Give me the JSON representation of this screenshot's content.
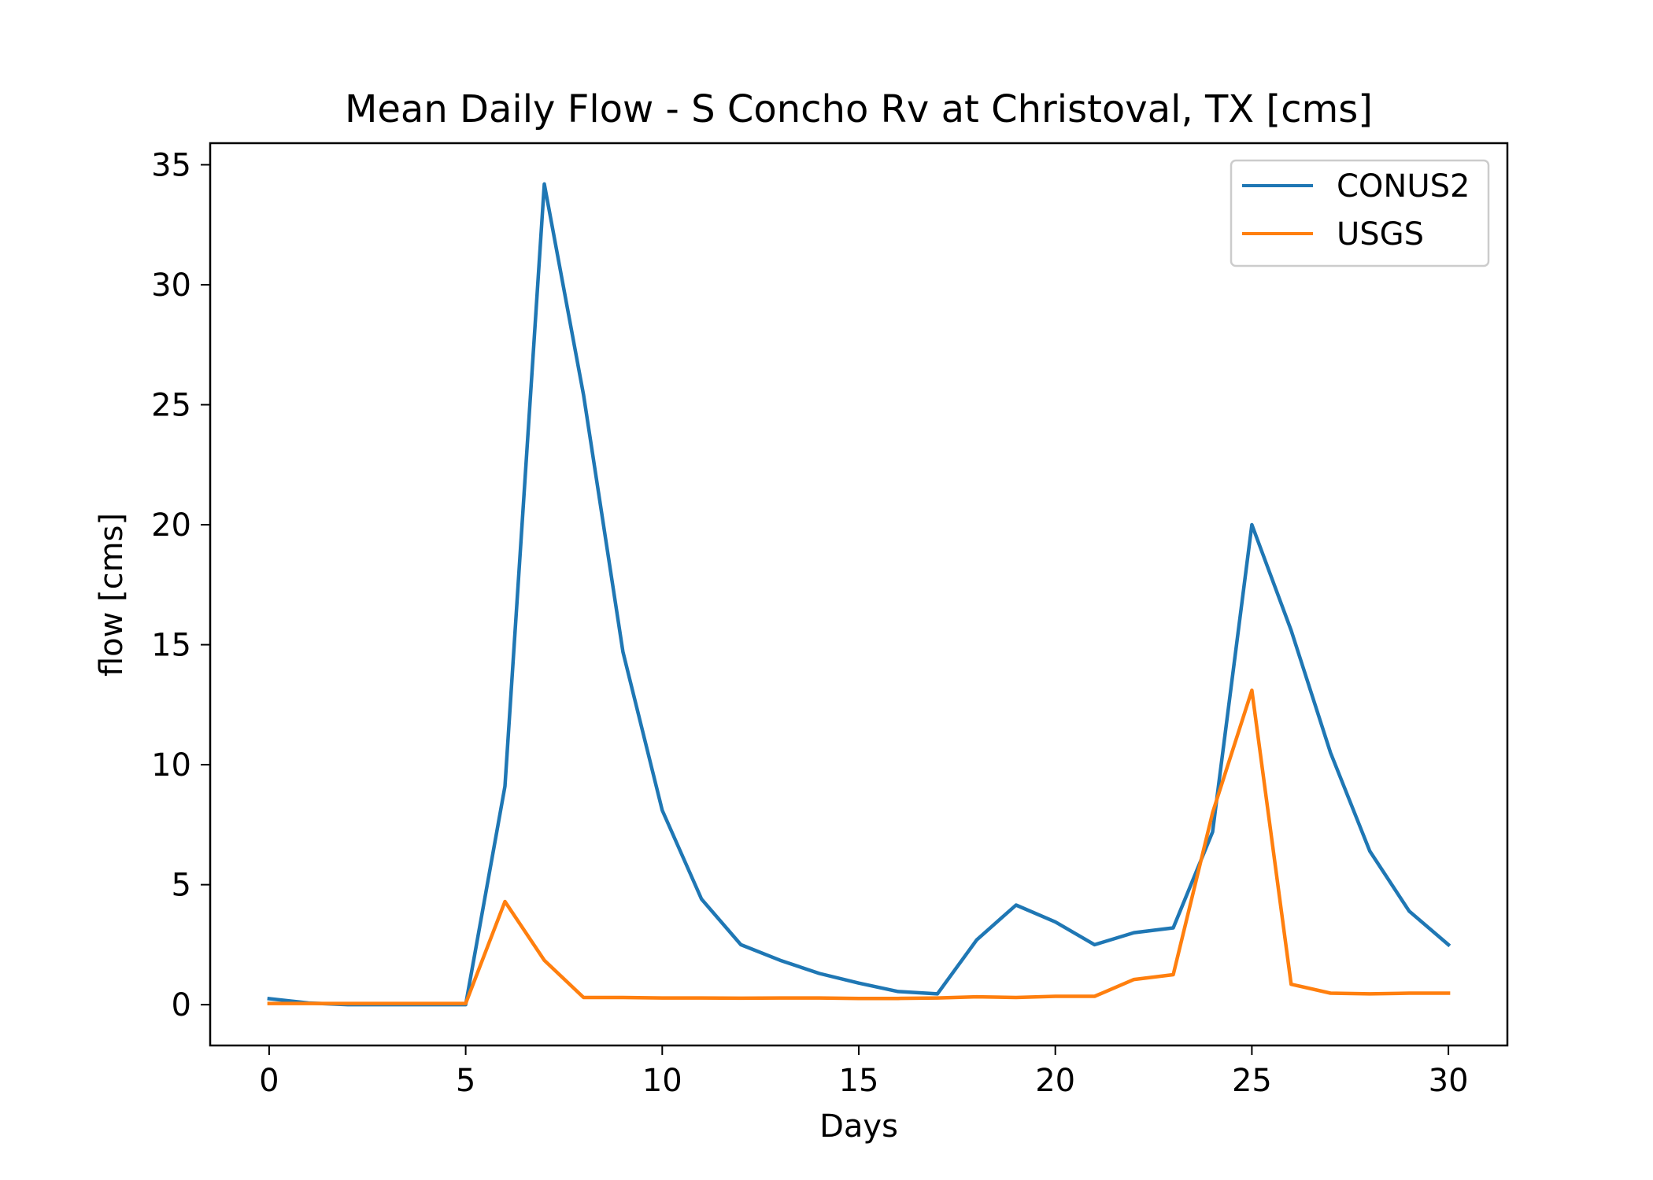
{
  "chart_data": {
    "type": "line",
    "title": "Mean Daily Flow - S Concho Rv at Christoval, TX [cms]",
    "xlabel": "Days",
    "ylabel": "flow [cms]",
    "xlim": [
      -1.5,
      31.5
    ],
    "ylim": [
      -1.7,
      35.9
    ],
    "xticks": [
      0,
      5,
      10,
      15,
      20,
      25,
      30
    ],
    "yticks": [
      0,
      5,
      10,
      15,
      20,
      25,
      30,
      35
    ],
    "grid": false,
    "legend_position": "top-right",
    "x": [
      0,
      1,
      2,
      3,
      4,
      5,
      6,
      7,
      8,
      9,
      10,
      11,
      12,
      13,
      14,
      15,
      16,
      17,
      18,
      19,
      20,
      21,
      22,
      23,
      24,
      25,
      26,
      27,
      28,
      29,
      30
    ],
    "series": [
      {
        "name": "CONUS2",
        "color": "#1f77b4",
        "values": [
          0.25,
          0.07,
          0.0,
          0.0,
          0.0,
          0.0,
          9.1,
          34.2,
          25.4,
          14.7,
          8.1,
          4.4,
          2.5,
          1.85,
          1.3,
          0.9,
          0.55,
          0.45,
          2.7,
          4.15,
          3.45,
          2.5,
          3.0,
          3.2,
          7.2,
          20.0,
          15.6,
          10.5,
          6.4,
          3.9,
          2.5
        ]
      },
      {
        "name": "USGS",
        "color": "#ff7f0e",
        "values": [
          0.05,
          0.05,
          0.05,
          0.05,
          0.05,
          0.05,
          4.3,
          1.85,
          0.3,
          0.3,
          0.28,
          0.28,
          0.27,
          0.28,
          0.28,
          0.26,
          0.26,
          0.28,
          0.33,
          0.3,
          0.35,
          0.35,
          1.05,
          1.25,
          8.0,
          13.1,
          0.85,
          0.48,
          0.45,
          0.48,
          0.48
        ]
      }
    ]
  }
}
